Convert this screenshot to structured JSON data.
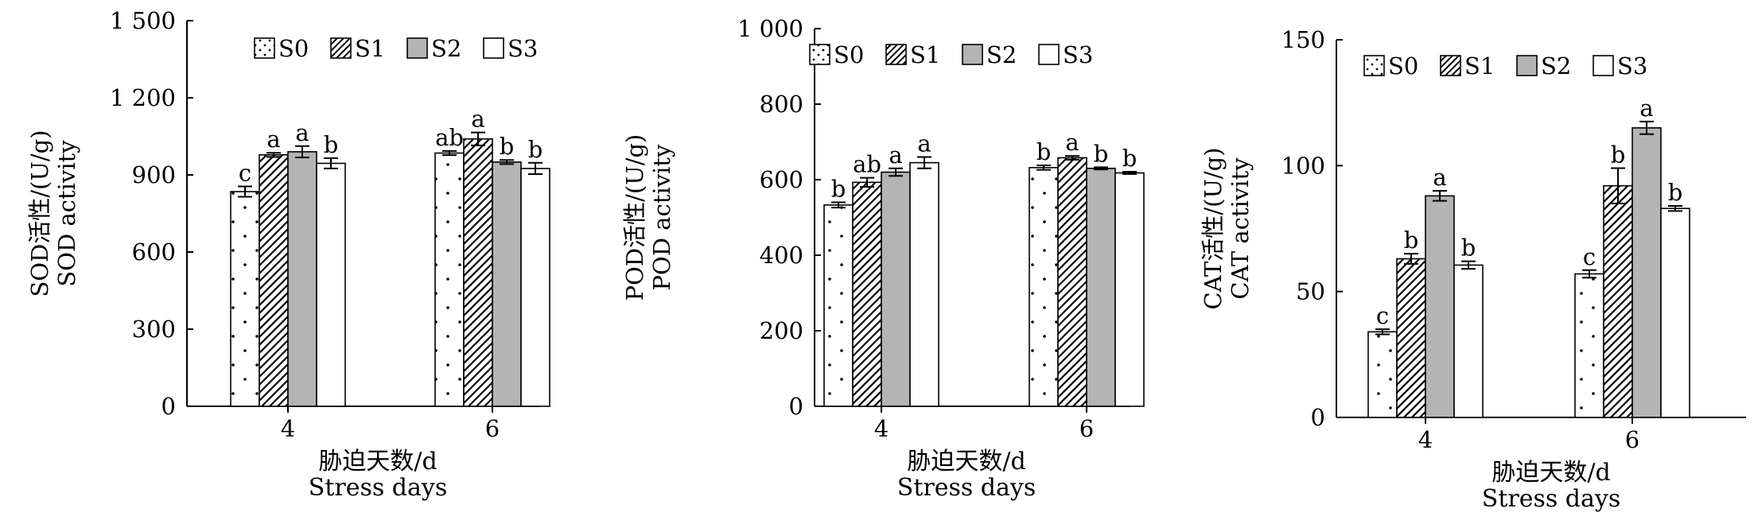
{
  "legend": [
    "S0",
    "S1",
    "S2",
    "S3"
  ],
  "xlabel_cn": "胁迫天数/d",
  "xlabel_en": "Stress days",
  "chart_data": [
    {
      "type": "bar",
      "categories": [
        "4",
        "6"
      ],
      "ylabel_cn": "SOD活性/(U/g)",
      "ylabel_en": "SOD activity",
      "ylim": [
        0,
        1500
      ],
      "yticks": [
        0,
        300,
        600,
        900,
        1200,
        1500
      ],
      "ytick_labels": [
        "0",
        "300",
        "600",
        "900",
        "1 200",
        "1 500"
      ],
      "series": [
        {
          "name": "S0",
          "values": [
            835,
            985
          ],
          "errors": [
            20,
            8
          ],
          "letters": [
            "c",
            "ab"
          ]
        },
        {
          "name": "S1",
          "values": [
            978,
            1040
          ],
          "errors": [
            8,
            25
          ],
          "letters": [
            "a",
            "a"
          ]
        },
        {
          "name": "S2",
          "values": [
            990,
            950
          ],
          "errors": [
            22,
            8
          ],
          "letters": [
            "a",
            "b"
          ]
        },
        {
          "name": "S3",
          "values": [
            945,
            925
          ],
          "errors": [
            20,
            22
          ],
          "letters": [
            "b",
            "b"
          ]
        }
      ]
    },
    {
      "type": "bar",
      "categories": [
        "4",
        "6"
      ],
      "ylabel_cn": "POD活性/(U/g)",
      "ylabel_en": "POD activity",
      "ylim": [
        0,
        1000
      ],
      "yticks": [
        0,
        200,
        400,
        600,
        800,
        1000
      ],
      "ytick_labels": [
        "0",
        "200",
        "400",
        "600",
        "800",
        "1 000"
      ],
      "series": [
        {
          "name": "S0",
          "values": [
            533,
            632
          ],
          "errors": [
            7,
            6
          ],
          "letters": [
            "b",
            "b"
          ]
        },
        {
          "name": "S1",
          "values": [
            593,
            658
          ],
          "errors": [
            12,
            5
          ],
          "letters": [
            "ab",
            "a"
          ]
        },
        {
          "name": "S2",
          "values": [
            620,
            630
          ],
          "errors": [
            10,
            3
          ],
          "letters": [
            "a",
            "b"
          ]
        },
        {
          "name": "S3",
          "values": [
            645,
            618
          ],
          "errors": [
            15,
            3
          ],
          "letters": [
            "a",
            "b"
          ]
        }
      ]
    },
    {
      "type": "bar",
      "categories": [
        "4",
        "6"
      ],
      "ylabel_cn": "CAT活性/(U/g)",
      "ylabel_en": "CAT activity",
      "ylim": [
        0,
        150
      ],
      "yticks": [
        0,
        50,
        100,
        150
      ],
      "ytick_labels": [
        "0",
        "50",
        "100",
        "150"
      ],
      "series": [
        {
          "name": "S0",
          "values": [
            34,
            57
          ],
          "errors": [
            1,
            1.5
          ],
          "letters": [
            "c",
            "c"
          ]
        },
        {
          "name": "S1",
          "values": [
            63,
            92
          ],
          "errors": [
            2,
            7
          ],
          "letters": [
            "b",
            "b"
          ]
        },
        {
          "name": "S2",
          "values": [
            88,
            115
          ],
          "errors": [
            2,
            2.5
          ],
          "letters": [
            "a",
            "a"
          ]
        },
        {
          "name": "S3",
          "values": [
            60.5,
            83
          ],
          "errors": [
            1.5,
            1
          ],
          "letters": [
            "b",
            "b"
          ]
        }
      ]
    }
  ]
}
